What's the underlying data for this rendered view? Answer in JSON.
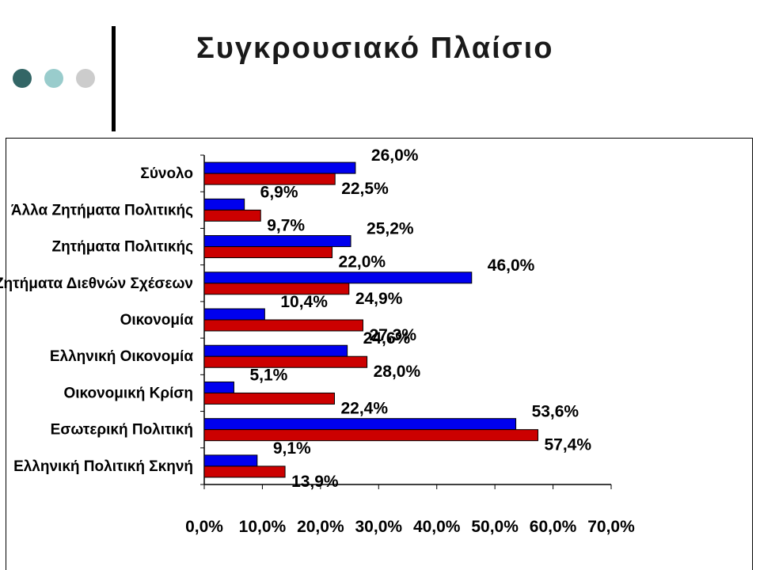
{
  "header": {
    "title": "Συγκρουσιακό Πλαίσιο"
  },
  "decor": {
    "dots": [
      "#336666",
      "#99cccc",
      "#cccccc"
    ]
  },
  "chart_data": {
    "type": "bar",
    "orientation": "horizontal",
    "categories": [
      "Σύνολο",
      "Άλλα Ζητήματα Πολιτικής",
      "Ζητήματα Πολιτικής",
      "Ζητήματα Διεθνών Σχέσεων",
      "Οικονομία",
      "Ελληνική Οικονομία",
      "Οικονομική Κρίση",
      "Εσωτερική Πολιτική",
      "Ελληνική Πολιτική Σκηνή"
    ],
    "series": [
      {
        "color": "#0000ee",
        "values": [
          26.0,
          6.9,
          25.2,
          46.0,
          10.4,
          24.6,
          5.1,
          53.6,
          9.1
        ],
        "labels": [
          "26,0%",
          "6,9%",
          "25,2%",
          "46,0%",
          "10,4%",
          "24,6%",
          "5,1%",
          "53,6%",
          "9,1%"
        ]
      },
      {
        "color": "#cc0000",
        "values": [
          22.5,
          9.7,
          22.0,
          24.9,
          27.3,
          28.0,
          22.4,
          57.4,
          13.9
        ],
        "labels": [
          "22,5%",
          "9,7%",
          "22,0%",
          "24,9%",
          "27,3%",
          "28,0%",
          "22,4%",
          "57,4%",
          "13,9%"
        ]
      }
    ],
    "xlim": [
      0,
      70
    ],
    "xticks": [
      "0,0%",
      "10,0%",
      "20,0%",
      "30,0%",
      "40,0%",
      "50,0%",
      "60,0%",
      "70,0%"
    ],
    "grid": false,
    "legend": "none"
  }
}
